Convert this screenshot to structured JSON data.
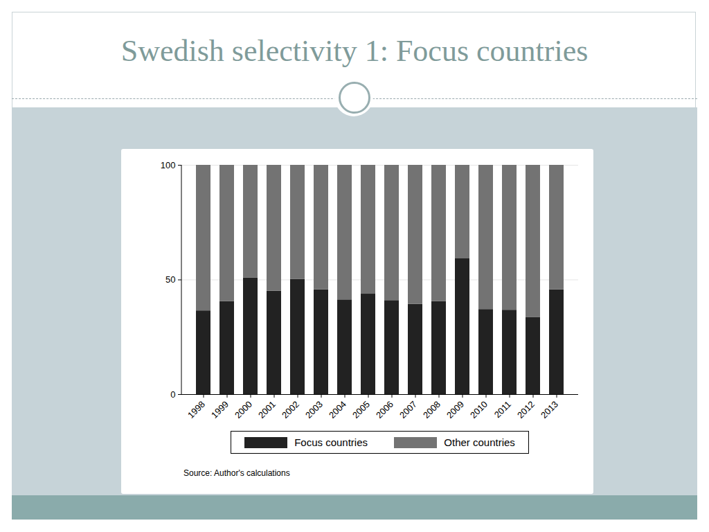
{
  "chart_data": {
    "type": "bar",
    "title": "Swedish selectivity 1: Focus countries",
    "caption": "Source: Author's calculations",
    "categories": [
      "1998",
      "1999",
      "2000",
      "2001",
      "2002",
      "2003",
      "2004",
      "2005",
      "2006",
      "2007",
      "2008",
      "2009",
      "2010",
      "2011",
      "2012",
      "2013"
    ],
    "series": [
      {
        "name": "Focus countries",
        "color": "#222222",
        "values": [
          36.5,
          40.6,
          50.8,
          45.1,
          50.2,
          45.7,
          41.3,
          43.8,
          41.0,
          39.4,
          40.6,
          59.4,
          37.1,
          36.8,
          33.7,
          45.7
        ]
      },
      {
        "name": "Other countries",
        "color": "#737373",
        "values": [
          63.5,
          59.4,
          49.2,
          54.9,
          49.8,
          54.3,
          58.7,
          56.2,
          59.0,
          60.6,
          59.4,
          40.6,
          62.9,
          63.2,
          66.3,
          54.3
        ]
      }
    ],
    "ylim": [
      0,
      100
    ],
    "yticks": [
      0,
      50,
      100
    ],
    "stacked": true,
    "grid": true,
    "legend": "bottom"
  }
}
